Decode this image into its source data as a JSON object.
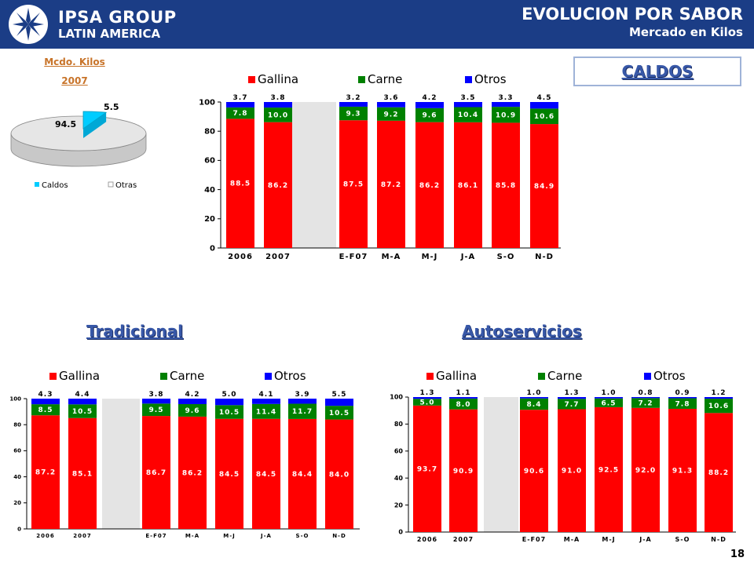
{
  "header": {
    "logo_line1": "IPSA GROUP",
    "logo_line2": "LATIN AMERICA",
    "title": "EVOLUCION POR SABOR",
    "subtitle": "Mercado en Kilos"
  },
  "pie_section": {
    "title_line1": "Mcdo. Kilos",
    "title_line2": "2007"
  },
  "caldos_label": "CALDOS",
  "sections": {
    "tradicional": "Tradicional",
    "autoservicios": "Autoservicios"
  },
  "page_number": "18",
  "colors": {
    "gallina": "#ff0000",
    "carne": "#008000",
    "otros": "#0000ff",
    "caldos": "#00ccff",
    "otras": "#e6e6e6",
    "header": "#1b3d86"
  },
  "chart_data": [
    {
      "id": "pie",
      "type": "pie",
      "categories": [
        "Caldos",
        "Otras"
      ],
      "values": [
        5.5,
        94.5
      ],
      "value_labels": [
        "5.5",
        "94.5"
      ],
      "legend": "bottom"
    },
    {
      "id": "main",
      "type": "bar",
      "stacked": true,
      "categories": [
        "2006",
        "2007",
        "E-F07",
        "M-A",
        "M-J",
        "J-A",
        "S-O",
        "N-D"
      ],
      "series": [
        {
          "name": "Gallina",
          "values": [
            88.5,
            86.2,
            87.5,
            87.2,
            86.2,
            86.1,
            85.8,
            84.9
          ],
          "labels": [
            "88.5",
            "86.2",
            "87.5",
            "87.2",
            "86.2",
            "86.1",
            "85.8",
            "84.9"
          ]
        },
        {
          "name": "Carne",
          "values": [
            7.8,
            10.0,
            9.3,
            9.2,
            9.6,
            10.4,
            10.9,
            10.6
          ],
          "labels": [
            "7.8",
            "10.0",
            "9.3",
            "9.2",
            "9.6",
            "10.4",
            "10.9",
            "10.6"
          ]
        },
        {
          "name": "Otros",
          "values": [
            3.7,
            3.8,
            3.2,
            3.6,
            4.2,
            3.5,
            3.3,
            4.5
          ],
          "labels": [
            "3.7",
            "3.8",
            "3.2",
            "3.6",
            "4.2",
            "3.5",
            "3.3",
            "4.5"
          ]
        }
      ],
      "yticks": [
        "0",
        "20",
        "40",
        "60",
        "80",
        "100"
      ],
      "ylim": [
        0,
        100
      ],
      "legend": "top"
    },
    {
      "id": "tradicional",
      "type": "bar",
      "stacked": true,
      "categories": [
        "2006",
        "2007",
        "E-F07",
        "M-A",
        "M-J",
        "J-A",
        "S-O",
        "N-D"
      ],
      "series": [
        {
          "name": "Gallina",
          "values": [
            87.2,
            85.1,
            86.7,
            86.2,
            84.5,
            84.5,
            84.4,
            84.0
          ],
          "labels": [
            "87.2",
            "85.1",
            "86.7",
            "86.2",
            "84.5",
            "84.5",
            "84.4",
            "84.0"
          ]
        },
        {
          "name": "Carne",
          "values": [
            8.5,
            10.5,
            9.5,
            9.6,
            10.5,
            11.4,
            11.7,
            10.5
          ],
          "labels": [
            "8.5",
            "10.5",
            "9.5",
            "9.6",
            "10.5",
            "11.4",
            "11.7",
            "10.5"
          ]
        },
        {
          "name": "Otros",
          "values": [
            4.3,
            4.4,
            3.8,
            4.2,
            5.0,
            4.1,
            3.9,
            5.5
          ],
          "labels": [
            "4.3",
            "4.4",
            "3.8",
            "4.2",
            "5.0",
            "4.1",
            "3.9",
            "5.5"
          ]
        }
      ],
      "yticks": [
        "0",
        "20",
        "40",
        "60",
        "80",
        "100"
      ],
      "ylim": [
        0,
        100
      ],
      "legend": "top"
    },
    {
      "id": "autoservicios",
      "type": "bar",
      "stacked": true,
      "categories": [
        "2006",
        "2007",
        "E-F07",
        "M-A",
        "M-J",
        "J-A",
        "S-O",
        "N-D"
      ],
      "series": [
        {
          "name": "Gallina",
          "values": [
            93.7,
            90.9,
            90.6,
            91.0,
            92.5,
            92.0,
            91.3,
            88.2
          ],
          "labels": [
            "93.7",
            "90.9",
            "90.6",
            "91.0",
            "92.5",
            "92.0",
            "91.3",
            "88.2"
          ]
        },
        {
          "name": "Carne",
          "values": [
            5.0,
            8.0,
            8.4,
            7.7,
            6.5,
            7.2,
            7.8,
            10.6
          ],
          "labels": [
            "5.0",
            "8.0",
            "8.4",
            "7.7",
            "6.5",
            "7.2",
            "7.8",
            "10.6"
          ]
        },
        {
          "name": "Otros",
          "values": [
            1.3,
            1.1,
            1.0,
            1.3,
            1.0,
            0.8,
            0.9,
            1.2
          ],
          "labels": [
            "1.3",
            "1.1",
            "1.0",
            "1.3",
            "1.0",
            "0.8",
            "0.9",
            "1.2"
          ]
        }
      ],
      "yticks": [
        "0",
        "20",
        "40",
        "60",
        "80",
        "100"
      ],
      "ylim": [
        0,
        100
      ],
      "legend": "top"
    }
  ]
}
